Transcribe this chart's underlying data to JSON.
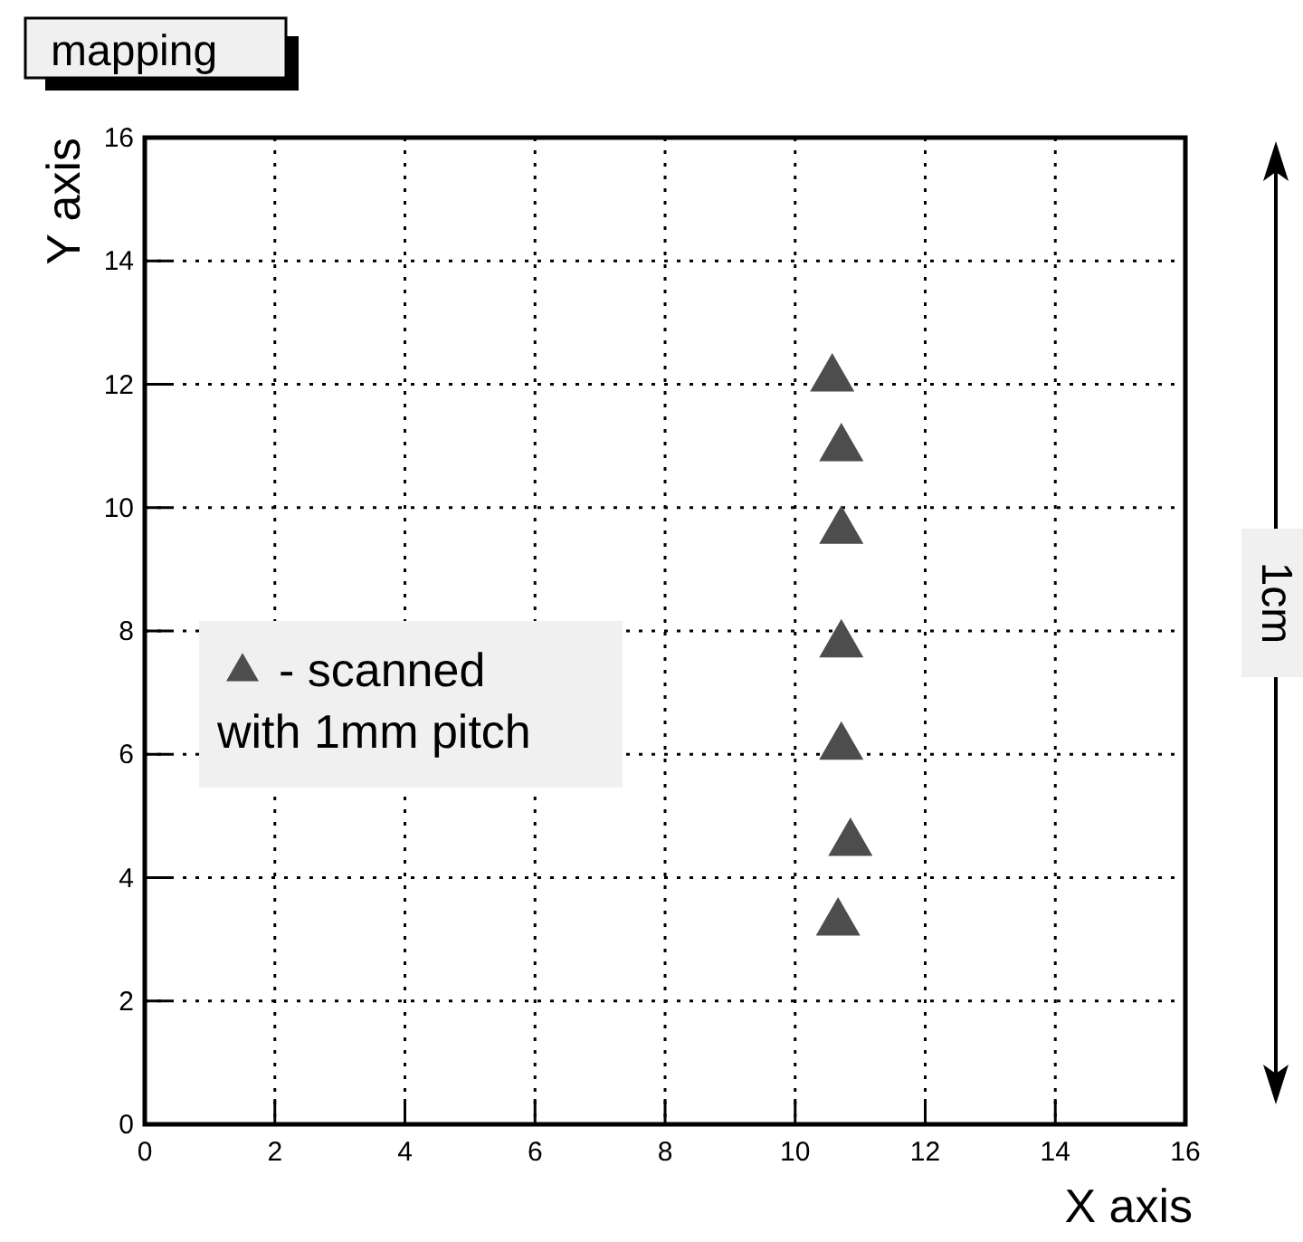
{
  "chart_data": {
    "type": "scatter",
    "title": "mapping",
    "xlabel": "X axis",
    "ylabel": "Y axis",
    "xlim": [
      0,
      16
    ],
    "ylim": [
      0,
      16
    ],
    "xticks": [
      0,
      2,
      4,
      6,
      8,
      10,
      12,
      14,
      16
    ],
    "yticks": [
      0,
      2,
      4,
      6,
      8,
      10,
      12,
      14,
      16
    ],
    "grid": true,
    "legend": "left",
    "marker": "triangle",
    "annotations": [
      "1cm"
    ],
    "series": [
      {
        "name": "- scanned with 1mm pitch",
        "color": "#4d4d4d",
        "x": [
          10.57,
          10.71,
          10.71,
          10.71,
          10.71,
          10.85,
          10.66
        ],
        "values": [
          12.09,
          10.96,
          9.62,
          7.78,
          6.12,
          4.56,
          3.27
        ]
      }
    ]
  }
}
